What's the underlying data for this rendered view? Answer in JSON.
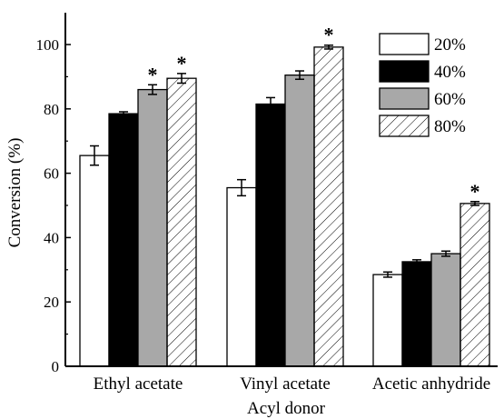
{
  "chart_data": {
    "type": "bar",
    "title": "",
    "xlabel": "Acyl donor",
    "ylabel": "Conversion (%)",
    "ylim": [
      0,
      110
    ],
    "yticks": [
      0,
      20,
      40,
      60,
      80,
      100
    ],
    "categories": [
      "Ethyl acetate",
      "Vinyl acetate",
      "Acetic anhydride"
    ],
    "series": [
      {
        "name": "20%",
        "values": [
          65.5,
          55.5,
          28.5
        ],
        "errors": [
          3.0,
          2.5,
          0.8
        ],
        "fill": "#ffffff",
        "pattern": "none"
      },
      {
        "name": "40%",
        "values": [
          78.5,
          81.5,
          32.5
        ],
        "errors": [
          0.6,
          2.0,
          0.6
        ],
        "fill": "#000000",
        "pattern": "none"
      },
      {
        "name": "60%",
        "values": [
          86.0,
          90.5,
          35.0
        ],
        "errors": [
          1.5,
          1.3,
          0.8
        ],
        "fill": "#a8a8a8",
        "pattern": "none"
      },
      {
        "name": "80%",
        "values": [
          89.5,
          99.2,
          50.6
        ],
        "errors": [
          1.5,
          0.6,
          0.6
        ],
        "fill": "#ffffff",
        "pattern": "hatch"
      }
    ],
    "significance": [
      {
        "category": 0,
        "series": 2,
        "label": "*"
      },
      {
        "category": 0,
        "series": 3,
        "label": "*"
      },
      {
        "category": 1,
        "series": 3,
        "label": "*"
      },
      {
        "category": 2,
        "series": 3,
        "label": "*"
      }
    ],
    "legend": "top-right",
    "grid": false
  }
}
